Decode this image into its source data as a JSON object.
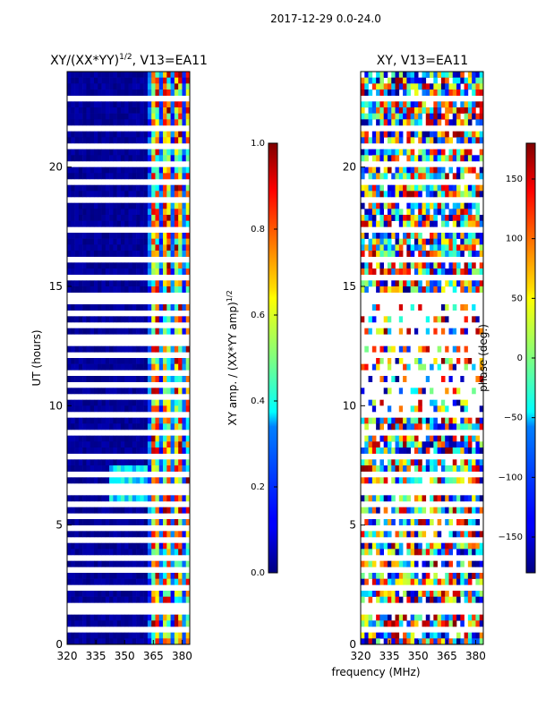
{
  "figure": {
    "suptitle": "2017-12-29 0.0-24.0",
    "xlabel": "frequency (MHz)"
  },
  "chart_data": [
    {
      "type": "heatmap",
      "title_base": "XY/(XX*YY)",
      "title_exp": "1/2",
      "title_suffix": ", V13=EA11",
      "xlabel": "",
      "ylabel": "UT (hours)",
      "xlim": [
        320,
        384
      ],
      "ylim": [
        0,
        24
      ],
      "xticks": [
        "320",
        "335",
        "350",
        "365",
        "380"
      ],
      "xtick_values": [
        320,
        335,
        350,
        365,
        380
      ],
      "yticks": [
        "0",
        "5",
        "10",
        "15",
        "20"
      ],
      "ytick_values": [
        0,
        5,
        10,
        15,
        20
      ],
      "colormap": "jet",
      "colorbar": {
        "label_base": "XY amp. / (XX*YY amp)",
        "label_exp": "1/2",
        "range": [
          0.0,
          1.0
        ],
        "ticks": [
          "0.0",
          "0.2",
          "0.4",
          "0.6",
          "0.8",
          "1.0"
        ],
        "tick_values": [
          0.0,
          0.2,
          0.4,
          0.6,
          0.8,
          1.0
        ]
      }
    },
    {
      "type": "heatmap",
      "title": "XY, V13=EA11",
      "xlabel": "frequency (MHz)",
      "ylabel": "",
      "xlim": [
        320,
        384
      ],
      "ylim": [
        0,
        24
      ],
      "xticks": [
        "320",
        "335",
        "350",
        "365",
        "380"
      ],
      "xtick_values": [
        320,
        335,
        350,
        365,
        380
      ],
      "yticks": [
        "0",
        "5",
        "10",
        "15",
        "20"
      ],
      "ytick_values": [
        0,
        5,
        10,
        15,
        20
      ],
      "colormap": "jet",
      "colorbar": {
        "label": "phase (deg.)",
        "range": [
          -180,
          180
        ],
        "ticks": [
          "−150",
          "−100",
          "−50",
          "0",
          "50",
          "100",
          "150"
        ],
        "tick_values": [
          -150,
          -100,
          -50,
          0,
          50,
          100,
          150
        ]
      }
    }
  ]
}
